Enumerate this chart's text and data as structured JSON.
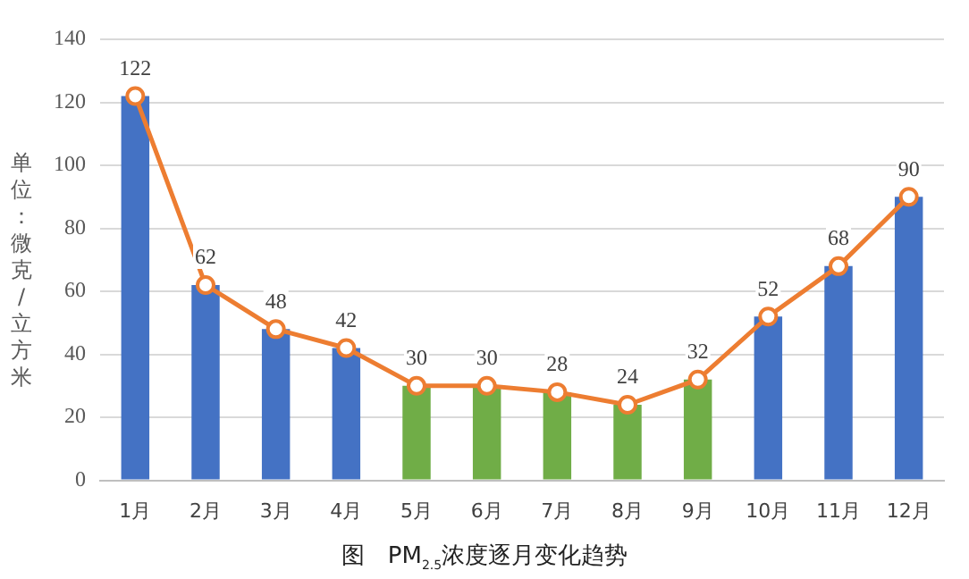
{
  "chart_data": {
    "type": "bar",
    "title": "图　PM$_{2.5}$浓度逐月变化趋势",
    "ylabel": "单位：微克/立方米",
    "categories": [
      "1月",
      "2月",
      "3月",
      "4月",
      "5月",
      "6月",
      "7月",
      "8月",
      "9月",
      "10月",
      "11月",
      "12月"
    ],
    "series": [
      {
        "colors": [
          "#4472c4",
          "#4472c4",
          "#4472c4",
          "#4472c4",
          "#70ad47",
          "#70ad47",
          "#70ad47",
          "#70ad47",
          "#70ad47",
          "#4472c4",
          "#4472c4",
          "#4472c4"
        ],
        "values": [
          122,
          62,
          48,
          42,
          30,
          30,
          28,
          24,
          32,
          52,
          68,
          90
        ]
      },
      {
        "type": "line",
        "color": "#ed7d31",
        "marker": "circle",
        "values": [
          122,
          62,
          48,
          42,
          30,
          30,
          28,
          24,
          32,
          52,
          68,
          90
        ],
        "value_labels": [
          "122",
          "62",
          "48",
          "42",
          "30",
          "30",
          "28",
          "24",
          "32",
          "52",
          "68",
          "90"
        ]
      }
    ],
    "ylim": [
      0,
      140
    ],
    "yticks": [
      0,
      20,
      40,
      60,
      80,
      100,
      120,
      140
    ],
    "grid": "y",
    "legend": false
  }
}
